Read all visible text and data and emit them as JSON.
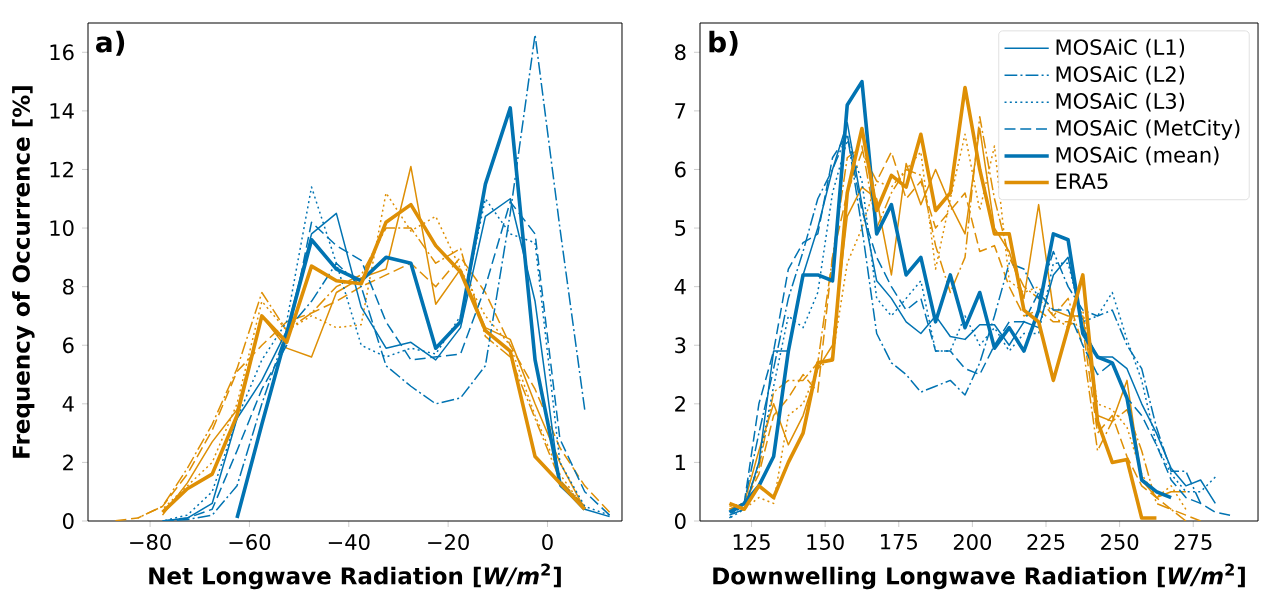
{
  "chart_data": [
    {
      "type": "line",
      "annotations": [
        "a)"
      ],
      "xlabel": "Net Longwave Radiation [*W/m*$^{2}$]",
      "ylabel": "Frequency of Occurrence [%]",
      "xlim": [
        -92.5,
        15
      ],
      "ylim": [
        0,
        17
      ],
      "xticks": [
        {
          "value": -80,
          "label": "−80"
        },
        {
          "value": -60,
          "label": "−60"
        },
        {
          "value": -40,
          "label": "−40"
        },
        {
          "value": -20,
          "label": "−20"
        },
        0
      ],
      "yticks": [
        0,
        2,
        4,
        6,
        8,
        10,
        12,
        14,
        16
      ],
      "legend": false,
      "series": [
        {
          "color": "#de8f05",
          "line_style": "solid",
          "x": [
            -77.5,
            -72.5,
            -67.5,
            -62.5,
            -57.5,
            -52.5,
            -47.5,
            -42.5,
            -37.5,
            -32.5,
            -27.5,
            -22.5,
            -17.5,
            -12.5,
            -7.5,
            -2.5,
            2.5,
            7.5
          ],
          "values": [
            0.2,
            1.3,
            2.7,
            3.8,
            7.0,
            5.9,
            5.6,
            7.8,
            8.3,
            8.6,
            12.1,
            7.4,
            8.6,
            6.6,
            6.2,
            4.0,
            2.0,
            0.4
          ]
        },
        {
          "color": "#de8f05",
          "line_style": "dashdot",
          "x": [
            -82.5,
            -77.5,
            -72.5,
            -67.5,
            -62.5,
            -57.5,
            -52.5,
            -47.5,
            -42.5,
            -37.5,
            -32.5,
            -27.5,
            -22.5,
            -17.5,
            -12.5,
            -7.5,
            -2.5,
            2.5,
            7.5
          ],
          "values": [
            0.1,
            0.5,
            1.8,
            3.3,
            5.2,
            7.8,
            6.5,
            7.1,
            8.0,
            8.4,
            10.0,
            10.0,
            8.8,
            9.3,
            6.3,
            5.6,
            3.5,
            1.4,
            0.5
          ]
        },
        {
          "color": "#de8f05",
          "line_style": "dotted",
          "x": [
            -77.5,
            -72.5,
            -67.5,
            -62.5,
            -57.5,
            -52.5,
            -47.5,
            -42.5,
            -37.5,
            -32.5,
            -27.5,
            -22.5,
            -17.5,
            -12.5,
            -7.5,
            -2.5,
            2.5,
            7.5
          ],
          "values": [
            0.4,
            1.2,
            2.0,
            4.0,
            7.5,
            6.5,
            7.0,
            6.6,
            6.7,
            11.2,
            9.9,
            10.4,
            8.6,
            7.0,
            6.0,
            3.6,
            1.6,
            0.4
          ]
        },
        {
          "color": "#de8f05",
          "line_style": "dashed",
          "x": [
            -87.5,
            -82.5,
            -77.5,
            -72.5,
            -67.5,
            -62.5,
            -57.5,
            -52.5,
            -47.5,
            -42.5,
            -37.5,
            -32.5,
            -27.5,
            -22.5,
            -17.5,
            -12.5,
            -7.5,
            -2.5,
            2.5,
            7.5,
            12.5
          ],
          "values": [
            0,
            0.1,
            0.5,
            1.6,
            3.1,
            5.1,
            6.0,
            6.8,
            7.1,
            7.5,
            8.0,
            8.4,
            8.8,
            8.0,
            9.0,
            7.8,
            6.0,
            4.5,
            2.5,
            1.2,
            0.3
          ]
        },
        {
          "color": "#0173b2",
          "line_style": "solid",
          "x": [
            -77.5,
            -72.5,
            -67.5,
            -62.5,
            -57.5,
            -52.5,
            -47.5,
            -42.5,
            -37.5,
            -32.5,
            -27.5,
            -22.5,
            -17.5,
            -12.5,
            -7.5,
            -2.5,
            2.5,
            7.5,
            12.5
          ],
          "values": [
            0,
            0.1,
            0.6,
            3.5,
            4.8,
            6.5,
            9.8,
            10.5,
            7.3,
            5.9,
            6.1,
            5.5,
            6.6,
            10.4,
            11.0,
            7.5,
            1.2,
            0.4,
            0.15
          ]
        },
        {
          "color": "#0173b2",
          "line_style": "dashdot",
          "x": [
            -77.5,
            -72.5,
            -67.5,
            -62.5,
            -57.5,
            -52.5,
            -47.5,
            -42.5,
            -37.5,
            -32.5,
            -27.5,
            -22.5,
            -17.5,
            -12.5,
            -7.5,
            -2.5,
            2.5,
            7.5
          ],
          "values": [
            0,
            0.05,
            0.2,
            1.2,
            4.0,
            6.5,
            7.5,
            8.8,
            8.0,
            5.3,
            4.6,
            4.0,
            4.2,
            5.3,
            10.5,
            16.6,
            10.0,
            3.8
          ]
        },
        {
          "color": "#0173b2",
          "line_style": "dotted",
          "x": [
            -77.5,
            -72.5,
            -67.5,
            -62.5,
            -57.5,
            -52.5,
            -47.5,
            -42.5,
            -37.5,
            -32.5,
            -27.5,
            -22.5,
            -17.5,
            -12.5,
            -7.5,
            -2.5,
            2.5,
            7.5,
            12.5
          ],
          "values": [
            0,
            0.2,
            1.0,
            3.5,
            5.5,
            6.8,
            11.4,
            8.8,
            6.0,
            5.6,
            5.9,
            5.7,
            7.0,
            11.0,
            9.8,
            9.5,
            2.0,
            0.5,
            0.2
          ]
        },
        {
          "color": "#0173b2",
          "line_style": "dashed",
          "x": [
            -77.5,
            -72.5,
            -67.5,
            -62.5,
            -57.5,
            -52.5,
            -47.5,
            -42.5,
            -37.5,
            -32.5,
            -27.5,
            -22.5,
            -17.5,
            -12.5,
            -7.5,
            -2.5,
            2.5,
            7.5,
            12.5
          ],
          "values": [
            0,
            0.1,
            0.4,
            2.4,
            4.5,
            6.0,
            10.2,
            9.4,
            8.9,
            6.8,
            5.5,
            5.6,
            5.7,
            8.0,
            10.9,
            9.8,
            2.8,
            1.0,
            0.2
          ]
        },
        {
          "color": "#0173b2",
          "line_style": "solid",
          "x": [
            -62.5,
            -57.5,
            -52.5,
            -47.5,
            -42.5,
            -37.5,
            -32.5,
            -27.5,
            -22.5,
            -17.5,
            -12.5,
            -7.5,
            -2.5,
            2.5,
            7.5
          ],
          "values": [
            0.1,
            3.3,
            6.4,
            9.6,
            8.6,
            8.2,
            9.0,
            8.8,
            5.9,
            6.8,
            11.5,
            14.1,
            5.5,
            1.3,
            0.4
          ]
        },
        {
          "color": "#de8f05",
          "line_style": "solid",
          "x": [
            -77.5,
            -72.5,
            -67.5,
            -62.5,
            -57.5,
            -52.5,
            -47.5,
            -42.5,
            -37.5,
            -32.5,
            -27.5,
            -22.5,
            -17.5,
            -12.5,
            -7.5,
            -2.5,
            2.5,
            7.5
          ],
          "values": [
            0.3,
            1.1,
            1.6,
            3.6,
            7.0,
            6.1,
            8.7,
            8.2,
            8.1,
            10.2,
            10.8,
            9.4,
            8.5,
            6.5,
            5.8,
            2.2,
            1.3,
            0.4
          ]
        }
      ]
    },
    {
      "type": "line",
      "annotations": [
        "b)"
      ],
      "xlabel": "Downwelling Longwave Radiation [*W/m*$^{2}$]",
      "xlim": [
        107.5,
        297
      ],
      "ylim": [
        0,
        8.5
      ],
      "xticks": [
        125,
        150,
        175,
        200,
        225,
        250,
        275
      ],
      "yticks": [
        0,
        1,
        2,
        3,
        4,
        5,
        6,
        7,
        8
      ],
      "legend": "top right",
      "series": [
        {
          "color": "#de8f05",
          "line_style": "solid",
          "x": [
            117.5,
            122.5,
            127.5,
            132.5,
            137.5,
            142.5,
            147.5,
            152.5,
            157.5,
            162.5,
            167.5,
            172.5,
            177.5,
            182.5,
            187.5,
            192.5,
            197.5,
            202.5,
            207.5,
            212.5,
            217.5,
            222.5,
            227.5,
            232.5,
            237.5,
            242.5,
            247.5,
            252.5,
            257.5,
            262.5,
            267.5,
            272.5
          ],
          "values": [
            0.2,
            0.3,
            1.2,
            2.0,
            1.3,
            1.8,
            2.6,
            3.0,
            5.2,
            5.7,
            5.5,
            4.2,
            6.1,
            5.4,
            6.0,
            5.4,
            4.9,
            6.7,
            5.0,
            4.6,
            3.8,
            5.4,
            3.6,
            3.5,
            3.5,
            1.8,
            1.7,
            2.4,
            0.7,
            0.4,
            0.5,
            0.5
          ]
        },
        {
          "color": "#de8f05",
          "line_style": "dashdot",
          "x": [
            117.5,
            122.5,
            127.5,
            132.5,
            137.5,
            142.5,
            147.5,
            152.5,
            157.5,
            162.5,
            167.5,
            172.5,
            177.5,
            182.5,
            187.5,
            192.5,
            197.5,
            202.5,
            207.5,
            212.5,
            217.5,
            222.5,
            227.5,
            232.5,
            237.5,
            242.5,
            247.5,
            252.5,
            257.5,
            262.5,
            267.5,
            272.5
          ],
          "values": [
            0.25,
            0.3,
            0.9,
            2.2,
            2.4,
            2.4,
            2.7,
            4.5,
            6.2,
            6.4,
            5.0,
            5.6,
            6.0,
            5.9,
            4.7,
            3.9,
            4.5,
            6.9,
            5.5,
            4.5,
            4.0,
            3.8,
            3.5,
            3.8,
            3.0,
            1.2,
            1.7,
            1.9,
            1.2,
            0.3,
            0.2,
            0
          ]
        },
        {
          "color": "#de8f05",
          "line_style": "dotted",
          "x": [
            117.5,
            122.5,
            127.5,
            132.5,
            137.5,
            142.5,
            147.5,
            152.5,
            157.5,
            162.5,
            167.5,
            172.5,
            177.5,
            182.5,
            187.5,
            192.5,
            197.5,
            202.5,
            207.5,
            212.5,
            217.5,
            222.5,
            227.5,
            232.5,
            237.5,
            242.5,
            247.5,
            252.5,
            257.5,
            262.5,
            267.5,
            272.5
          ],
          "values": [
            0.3,
            0.2,
            0.4,
            0.3,
            1.8,
            2.0,
            2.6,
            2.8,
            4.4,
            5.0,
            5.8,
            5.7,
            6.0,
            6.3,
            4.3,
            5.5,
            6.6,
            5.3,
            6.4,
            4.1,
            3.9,
            4.0,
            3.5,
            3.3,
            3.6,
            2.0,
            1.9,
            1.6,
            0.8,
            0.4,
            0.6,
            0.2
          ]
        },
        {
          "color": "#de8f05",
          "line_style": "dashed",
          "x": [
            117.5,
            122.5,
            127.5,
            132.5,
            137.5,
            142.5,
            147.5,
            152.5,
            157.5,
            162.5,
            167.5,
            172.5,
            177.5,
            182.5,
            187.5,
            192.5,
            197.5,
            202.5,
            207.5,
            212.5,
            217.5,
            222.5,
            227.5,
            232.5,
            237.5,
            242.5,
            247.5,
            252.5,
            257.5,
            262.5,
            267.5,
            272.5,
            277.5
          ],
          "values": [
            0.2,
            0.3,
            0.8,
            1.8,
            2.1,
            2.5,
            2.2,
            4.5,
            5.6,
            6.3,
            5.8,
            6.3,
            5.5,
            5.8,
            5.0,
            5.3,
            5.6,
            4.6,
            4.7,
            4.0,
            3.5,
            3.6,
            3.4,
            3.4,
            3.3,
            1.5,
            1.8,
            1.1,
            0.6,
            0.4,
            0.2,
            0.1,
            0
          ]
        },
        {
          "name": "MOSAiC (L1)",
          "color": "#0173b2",
          "line_style": "solid",
          "x": [
            117.5,
            122.5,
            127.5,
            132.5,
            137.5,
            142.5,
            147.5,
            152.5,
            157.5,
            162.5,
            167.5,
            172.5,
            177.5,
            182.5,
            187.5,
            192.5,
            197.5,
            202.5,
            207.5,
            212.5,
            217.5,
            222.5,
            227.5,
            232.5,
            237.5,
            242.5,
            247.5,
            252.5,
            257.5,
            262.5,
            267.5,
            272.5,
            277.5,
            282.5
          ],
          "values": [
            0.1,
            0.2,
            1.0,
            2.9,
            2.9,
            4.2,
            5.0,
            6.0,
            6.8,
            5.4,
            4.1,
            3.8,
            3.4,
            3.2,
            3.5,
            3.15,
            3.1,
            3.35,
            3.35,
            3.0,
            3.4,
            3.3,
            4.2,
            4.5,
            3.3,
            2.8,
            2.8,
            2.6,
            2.0,
            1.5,
            0.9,
            0.6,
            0.7,
            0.3
          ]
        },
        {
          "name": "MOSAiC (L2)",
          "color": "#0173b2",
          "line_style": "dashdot",
          "x": [
            117.5,
            122.5,
            127.5,
            132.5,
            137.5,
            142.5,
            147.5,
            152.5,
            157.5,
            162.5,
            167.5,
            172.5,
            177.5,
            182.5,
            187.5,
            192.5,
            197.5,
            202.5,
            207.5,
            212.5,
            217.5,
            222.5,
            227.5,
            232.5,
            237.5,
            242.5,
            247.5,
            252.5,
            257.5,
            262.5,
            267.5,
            272.5,
            277.5
          ],
          "values": [
            0.05,
            0.3,
            1.5,
            2.6,
            3.8,
            4.6,
            5.5,
            6.0,
            6.6,
            5.0,
            3.2,
            2.7,
            2.5,
            2.2,
            2.3,
            2.4,
            2.15,
            2.7,
            3.5,
            4.4,
            4.3,
            3.8,
            4.6,
            4.0,
            3.6,
            3.5,
            3.6,
            3.0,
            2.6,
            1.6,
            0.85,
            0.85,
            0.3
          ]
        },
        {
          "name": "MOSAiC (L3)",
          "color": "#0173b2",
          "line_style": "dotted",
          "x": [
            117.5,
            122.5,
            127.5,
            132.5,
            137.5,
            142.5,
            147.5,
            152.5,
            157.5,
            162.5,
            167.5,
            172.5,
            177.5,
            182.5,
            187.5,
            192.5,
            197.5,
            202.5,
            207.5,
            212.5,
            217.5,
            222.5,
            227.5,
            232.5,
            237.5,
            242.5,
            247.5,
            252.5,
            257.5,
            262.5,
            267.5,
            272.5,
            277.5,
            282.5
          ],
          "values": [
            0.05,
            0.2,
            1.0,
            2.3,
            3.5,
            3.3,
            3.9,
            5.6,
            6.5,
            5.8,
            3.8,
            3.5,
            3.8,
            4.1,
            2.9,
            2.9,
            3.5,
            3.0,
            3.3,
            2.9,
            3.2,
            3.2,
            4.4,
            4.4,
            3.4,
            3.5,
            3.9,
            3.1,
            2.4,
            1.3,
            0.8,
            0.5,
            0.5,
            0.75
          ]
        },
        {
          "name": "MOSAiC (MetCity)",
          "color": "#0173b2",
          "line_style": "dashed",
          "x": [
            117.5,
            122.5,
            127.5,
            132.5,
            137.5,
            142.5,
            147.5,
            152.5,
            157.5,
            162.5,
            167.5,
            172.5,
            177.5,
            182.5,
            187.5,
            192.5,
            197.5,
            202.5,
            207.5,
            212.5,
            217.5,
            222.5,
            227.5,
            232.5,
            237.5,
            242.5,
            247.5,
            252.5,
            257.5,
            262.5,
            267.5,
            272.5,
            277.5,
            282.5,
            287.5
          ],
          "values": [
            0.1,
            0.3,
            2.0,
            2.9,
            4.3,
            4.75,
            4.9,
            6.2,
            6.6,
            5.3,
            4.5,
            4.0,
            3.6,
            3.8,
            2.9,
            2.9,
            2.6,
            2.5,
            3.0,
            3.4,
            3.4,
            3.9,
            3.6,
            3.6,
            3.0,
            2.5,
            2.7,
            2.1,
            1.8,
            1.3,
            0.7,
            0.4,
            0.3,
            0.15,
            0.1
          ]
        },
        {
          "name": "MOSAiC (mean)",
          "color": "#0173b2",
          "line_style": "solid",
          "x": [
            117.5,
            122.5,
            127.5,
            132.5,
            137.5,
            142.5,
            147.5,
            152.5,
            157.5,
            162.5,
            167.5,
            172.5,
            177.5,
            182.5,
            187.5,
            192.5,
            197.5,
            202.5,
            207.5,
            212.5,
            217.5,
            222.5,
            227.5,
            232.5,
            237.5,
            242.5,
            247.5,
            252.5,
            257.5,
            262.5,
            267.5
          ],
          "values": [
            0.15,
            0.3,
            0.6,
            1.1,
            2.9,
            4.2,
            4.2,
            4.1,
            7.1,
            7.5,
            4.9,
            5.4,
            4.2,
            4.5,
            3.4,
            4.2,
            3.3,
            3.9,
            2.95,
            3.3,
            2.9,
            3.6,
            4.9,
            4.8,
            3.2,
            2.8,
            2.7,
            2.1,
            0.7,
            0.5,
            0.4
          ]
        },
        {
          "name": "ERA5",
          "color": "#de8f05",
          "line_style": "solid",
          "x": [
            117.5,
            122.5,
            127.5,
            132.5,
            137.5,
            142.5,
            147.5,
            152.5,
            157.5,
            162.5,
            167.5,
            172.5,
            177.5,
            182.5,
            187.5,
            192.5,
            197.5,
            202.5,
            207.5,
            212.5,
            217.5,
            222.5,
            227.5,
            232.5,
            237.5,
            242.5,
            247.5,
            252.5,
            257.5,
            262.5
          ],
          "values": [
            0.3,
            0.2,
            0.6,
            0.4,
            1.0,
            1.5,
            2.7,
            2.75,
            5.6,
            6.7,
            5.3,
            5.9,
            5.7,
            6.6,
            5.3,
            5.6,
            7.4,
            6.0,
            4.9,
            4.9,
            3.6,
            3.4,
            2.4,
            3.3,
            4.2,
            1.7,
            1.0,
            1.05,
            0.05,
            0.05
          ]
        }
      ]
    }
  ]
}
